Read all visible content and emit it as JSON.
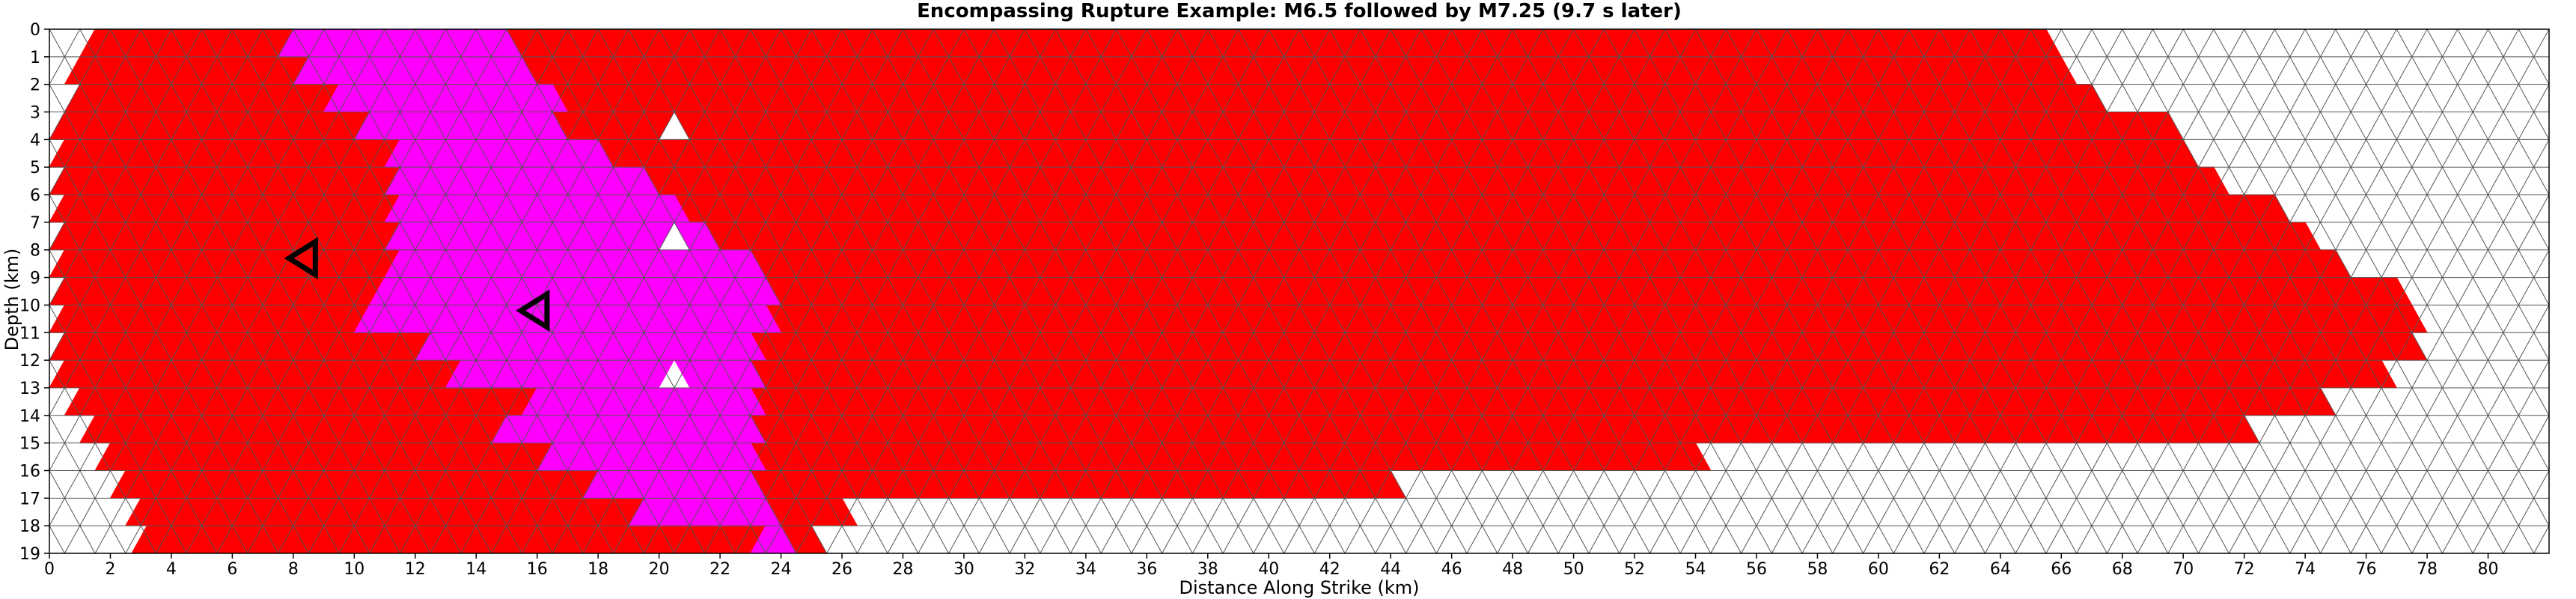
{
  "chart_data": {
    "type": "heatmap",
    "title": "Encompassing Rupture Example: M6.5 followed by M7.25 (9.7 s later)",
    "xlabel": "Distance Along Strike (km)",
    "ylabel": "Depth (km)",
    "xlim": [
      0,
      82
    ],
    "ylim": [
      19,
      0
    ],
    "x_tick_labels": [
      "0",
      "2",
      "4",
      "6",
      "8",
      "10",
      "12",
      "14",
      "16",
      "18",
      "20",
      "22",
      "24",
      "26",
      "28",
      "30",
      "32",
      "34",
      "36",
      "38",
      "40",
      "42",
      "44",
      "46",
      "48",
      "50",
      "52",
      "54",
      "56",
      "58",
      "60",
      "62",
      "64",
      "66",
      "68",
      "70",
      "72",
      "74",
      "76",
      "78",
      "80"
    ],
    "y_tick_labels": [
      "0",
      "1",
      "2",
      "3",
      "4",
      "5",
      "6",
      "7",
      "8",
      "9",
      "10",
      "11",
      "12",
      "13",
      "14",
      "15",
      "16",
      "17",
      "18",
      "19"
    ],
    "grid": "triangular mesh, 1 km spacing",
    "colors": {
      "m725_rupture": "#ff0000",
      "m65_rupture": "#ff00ff",
      "unruptured": "#ffffff",
      "mesh_line": "#000000",
      "outer_mesh_line": "#888888"
    },
    "m725_extent_by_depth_km": [
      {
        "depth": 0,
        "x_start": 1,
        "x_end": 65.5
      },
      {
        "depth": 1,
        "x_start": 0.5,
        "x_end": 66
      },
      {
        "depth": 2,
        "x_start": 0.5,
        "x_end": 67
      },
      {
        "depth": 3,
        "x_start": 0,
        "x_end": 69.5
      },
      {
        "depth": 4,
        "x_start": 0,
        "x_end": 70
      },
      {
        "depth": 5,
        "x_start": 0,
        "x_end": 71
      },
      {
        "depth": 6,
        "x_start": 0,
        "x_end": 73
      },
      {
        "depth": 7,
        "x_start": 0,
        "x_end": 74
      },
      {
        "depth": 8,
        "x_start": 0,
        "x_end": 75
      },
      {
        "depth": 9,
        "x_start": 0,
        "x_end": 77
      },
      {
        "depth": 10,
        "x_start": 0,
        "x_end": 77.5
      },
      {
        "depth": 11,
        "x_start": 0,
        "x_end": 77.5
      },
      {
        "depth": 12,
        "x_start": 0,
        "x_end": 76.5
      },
      {
        "depth": 13,
        "x_start": 0.5,
        "x_end": 74.5
      },
      {
        "depth": 14,
        "x_start": 1,
        "x_end": 72
      },
      {
        "depth": 15,
        "x_start": 1.5,
        "x_end": 54
      },
      {
        "depth": 16,
        "x_start": 2,
        "x_end": 44
      },
      {
        "depth": 17,
        "x_start": 2.5,
        "x_end": 26
      },
      {
        "depth": 18,
        "x_start": 2.7,
        "x_end": 25
      }
    ],
    "m65_extent_by_depth_km": [
      {
        "depth": 0,
        "x_start": 7.5,
        "x_end": 15
      },
      {
        "depth": 1,
        "x_start": 8,
        "x_end": 15.5
      },
      {
        "depth": 2,
        "x_start": 9,
        "x_end": 16.5
      },
      {
        "depth": 3,
        "x_start": 10,
        "x_end": 16.5
      },
      {
        "depth": 4,
        "x_start": 11,
        "x_end": 18
      },
      {
        "depth": 5,
        "x_start": 11,
        "x_end": 19.5
      },
      {
        "depth": 6,
        "x_start": 11,
        "x_end": 20.5
      },
      {
        "depth": 7,
        "x_start": 11,
        "x_end": 21.5
      },
      {
        "depth": 8,
        "x_start": 11,
        "x_end": 23
      },
      {
        "depth": 9,
        "x_start": 10.5,
        "x_end": 23.5
      },
      {
        "depth": 10,
        "x_start": 10,
        "x_end": 23.5
      },
      {
        "depth": 11,
        "x_start": 12,
        "x_end": 23
      },
      {
        "depth": 12,
        "x_start": 13,
        "x_end": 23
      },
      {
        "depth": 13,
        "x_start": 15.5,
        "x_end": 23
      },
      {
        "depth": 14,
        "x_start": 14.5,
        "x_end": 23
      },
      {
        "depth": 15,
        "x_start": 16,
        "x_end": 23
      },
      {
        "depth": 16,
        "x_start": 17.5,
        "x_end": 23
      },
      {
        "depth": 17,
        "x_start": 19,
        "x_end": 23.5
      },
      {
        "depth": 18,
        "x_start": 23,
        "x_end": 24
      }
    ],
    "unruptured_holes": [
      {
        "x": 20.5,
        "depth": 3.5
      },
      {
        "x": 20.5,
        "depth": 7.5
      },
      {
        "x": 20.5,
        "depth": 12.5
      }
    ],
    "hypocenters": [
      {
        "x": 8.4,
        "depth": 8.3
      },
      {
        "x": 16.0,
        "depth": 10.2
      }
    ]
  }
}
